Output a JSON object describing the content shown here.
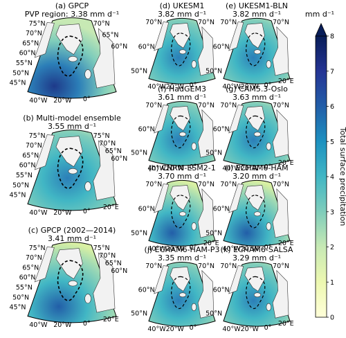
{
  "colorbar": {
    "unit": "mm d⁻¹",
    "label": "Total surface precipitation",
    "ticks": [
      "0",
      "1",
      "2",
      "3",
      "4",
      "5",
      "6",
      "7",
      "8"
    ],
    "range": [
      0,
      8
    ],
    "colors": [
      "#ffffd9",
      "#edf8b1",
      "#c7e9b4",
      "#7fcdbb",
      "#41b6c4",
      "#1d91c0",
      "#225ea8",
      "#253494",
      "#081d58"
    ]
  },
  "panels": [
    {
      "id": "a",
      "title1": "(a) GPCP",
      "title2": "PVP region: 3.38 mm d⁻¹",
      "lat": [
        "75°N",
        "70°N",
        "65°N",
        "60°N",
        "55°N",
        "50°N",
        "45°N",
        "70°N",
        "65°N",
        "60°N"
      ],
      "lon": [
        "40°W",
        "20°W",
        "0°"
      ]
    },
    {
      "id": "b",
      "title1": "(b) Multi-model ensemble",
      "title2": "3.55 mm d⁻¹",
      "lat": [
        "75°N",
        "70°N",
        "65°N",
        "60°N",
        "55°N",
        "50°N",
        "45°N",
        "75°N",
        "70°N",
        "65°N",
        "60°N"
      ],
      "lon": [
        "40°W",
        "20°W",
        "0°",
        "20°E"
      ]
    },
    {
      "id": "c",
      "title1": "(c) GPCP (2002—2014)",
      "title2": "3.41 mm d⁻¹",
      "lat": [
        "75°N",
        "70°N",
        "65°N",
        "60°N",
        "55°N",
        "50°N",
        "45°N",
        "75°N",
        "70°N",
        "65°N",
        "60°N"
      ],
      "lon": [
        "40°W",
        "20°W",
        "0°",
        "20°E"
      ]
    },
    {
      "id": "d",
      "title1": "(d) UKESM1",
      "title2": "3.82 mm d⁻¹",
      "lat": [
        "70°N",
        "60°N",
        "50°N",
        "70°N"
      ],
      "lon": [
        "40°W",
        "20°W",
        "0°"
      ]
    },
    {
      "id": "e",
      "title1": "(e) UKESM1-BLN",
      "title2": "3.82 mm d⁻¹",
      "lat": [
        "70°N",
        "60°N",
        "50°N",
        "70°N"
      ],
      "lon": [
        "40°W",
        "20°W",
        "0°",
        "20°E"
      ]
    },
    {
      "id": "f",
      "title1": "(f) HadGEM3",
      "title2": "3.61 mm d⁻¹",
      "lat": [
        "70°N",
        "60°N",
        "50°N",
        "70°N"
      ],
      "lon": [
        "40°W",
        "20°W",
        "0°"
      ]
    },
    {
      "id": "g",
      "title1": "(g) CAM5.3-Oslo",
      "title2": "3.63 mm d⁻¹",
      "lat": [
        "70°N",
        "60°N",
        "50°N",
        "70°N"
      ],
      "lon": [
        "40°W",
        "20°W",
        "0°",
        "20°E"
      ]
    },
    {
      "id": "h",
      "title1": "(h) CNRM-ESM2-1",
      "title2": "3.70 mm d⁻¹",
      "lat": [
        "70°N",
        "60°N",
        "50°N",
        "70°N"
      ],
      "lon": [
        "40°W",
        "20°W",
        "0°",
        "20°E"
      ]
    },
    {
      "id": "i",
      "title1": "(i) ECHAM6-HAM",
      "title2": "3.20 mm d⁻¹",
      "lat": [
        "70°N",
        "60°N",
        "50°N",
        "70°N"
      ],
      "lon": [
        "40°W",
        "20°W",
        "0°",
        "20°E"
      ]
    },
    {
      "id": "j",
      "title1": "(j) ECHAM6-HAM-P3",
      "title2": "3.35 mm d⁻¹",
      "lat": [
        "70°N",
        "60°N",
        "50°N",
        "70°N"
      ],
      "lon": [
        "40°W",
        "20°W",
        "0°"
      ]
    },
    {
      "id": "k",
      "title1": "(k) ECHAM6-SALSA",
      "title2": "3.29 mm d⁻¹",
      "lat": [
        "70°N",
        "60°N",
        "50°N",
        "70°N"
      ],
      "lon": [
        "40°W",
        "20°W",
        "0°",
        "20°E"
      ]
    }
  ]
}
